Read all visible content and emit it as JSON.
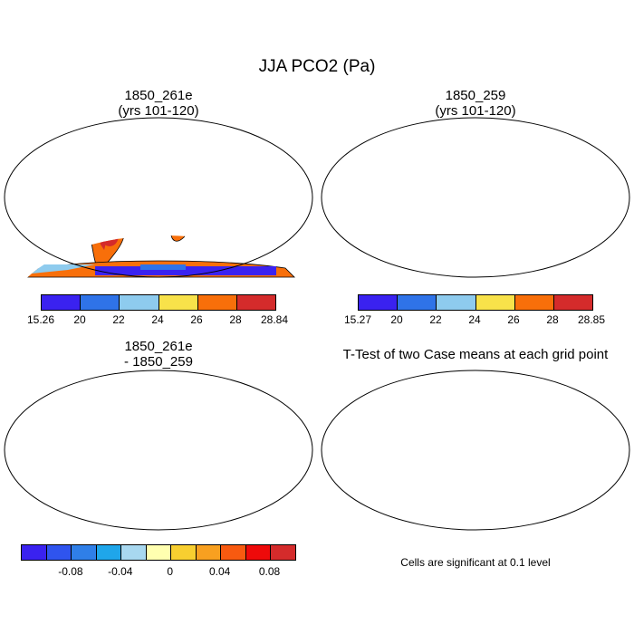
{
  "figure": {
    "title": "JJA PCO2 (Pa)"
  },
  "panels": [
    {
      "id": "case1",
      "title_line1": "1850_261e",
      "title_line2": "(yrs 101-120)",
      "colorbar": {
        "colors": [
          "#3a22f0",
          "#2f73e8",
          "#8ecbee",
          "#f8e24a",
          "#f86f0a",
          "#d42b2b"
        ],
        "labels": [
          "15.26",
          "20",
          "22",
          "24",
          "26",
          "28",
          "28.84"
        ]
      }
    },
    {
      "id": "case2",
      "title_line1": "1850_259",
      "title_line2": "(yrs 101-120)",
      "colorbar": {
        "colors": [
          "#3a22f0",
          "#2f73e8",
          "#8ecbee",
          "#f8e24a",
          "#f86f0a",
          "#d42b2b"
        ],
        "labels": [
          "15.27",
          "20",
          "22",
          "24",
          "26",
          "28",
          "28.85"
        ]
      }
    },
    {
      "id": "difference",
      "title_line1": "1850_261e",
      "title_line2": "- 1850_259",
      "colorbar": {
        "colors": [
          "#3a22f0",
          "#2f54ee",
          "#2f7fe8",
          "#1fa6ea",
          "#a8d8f0",
          "#ffffb0",
          "#f8cf30",
          "#f8a020",
          "#f85a10",
          "#ee0a0a",
          "#d42b2b"
        ],
        "labels": [
          "-0.08",
          "-0.04",
          "0",
          "0.04",
          "0.08"
        ]
      }
    },
    {
      "id": "ttest",
      "title_line1": "T-Test of two Case means at each grid point",
      "note": "Cells are significant at 0.1 level"
    }
  ]
}
